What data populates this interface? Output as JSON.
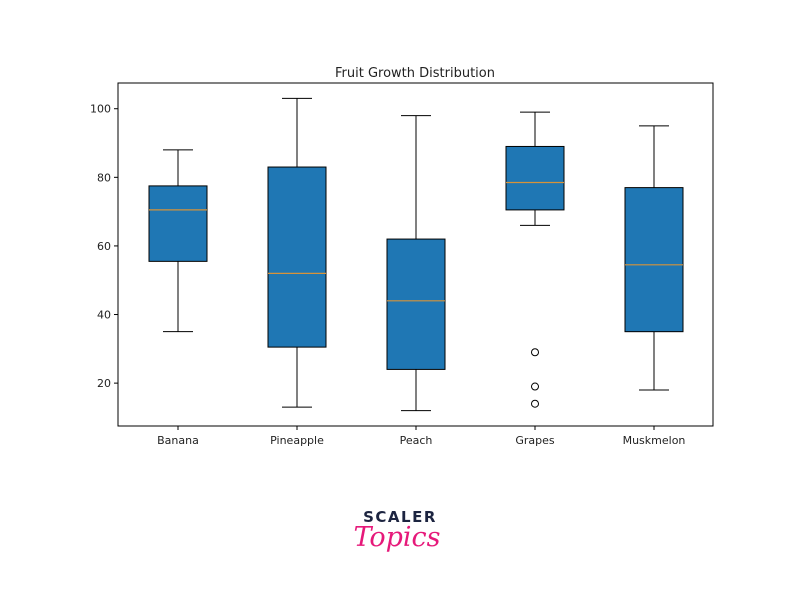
{
  "chart_data": {
    "type": "boxplot",
    "title": "Fruit Growth Distribution",
    "xlabel": "",
    "ylabel": "",
    "categories": [
      "Banana",
      "Pineapple",
      "Peach",
      "Grapes",
      "Muskmelon"
    ],
    "boxes": [
      {
        "whislo": 35,
        "q1": 55.5,
        "med": 70.5,
        "q3": 77.5,
        "whishi": 88,
        "fliers": []
      },
      {
        "whislo": 13,
        "q1": 30.5,
        "med": 52,
        "q3": 83,
        "whishi": 103,
        "fliers": []
      },
      {
        "whislo": 12,
        "q1": 24,
        "med": 44,
        "q3": 62,
        "whishi": 98,
        "fliers": []
      },
      {
        "whislo": 66,
        "q1": 70.5,
        "med": 78.5,
        "q3": 89,
        "whishi": 99,
        "fliers": [
          29,
          19,
          14
        ]
      },
      {
        "whislo": 18,
        "q1": 35,
        "med": 54.5,
        "q3": 77,
        "whishi": 95,
        "fliers": []
      }
    ],
    "yticks": [
      20,
      40,
      60,
      80,
      100
    ],
    "ylim": [
      7.5,
      107.5
    ],
    "grid": false,
    "legend": "none",
    "colors": {
      "box_fill": "#1f77b4",
      "median": "#d6933a",
      "line": "#000000"
    }
  },
  "logo": {
    "top": "SCALER",
    "bottom": "Topics"
  }
}
